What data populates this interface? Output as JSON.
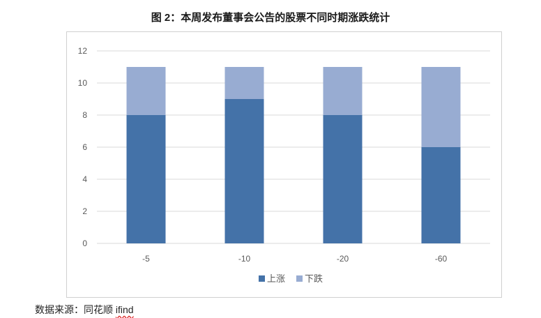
{
  "title": "图 2：本周发布董事会公告的股票不同时期涨跌统计",
  "source_prefix": "数据来源：同花顺 ",
  "source_brand": "ifind",
  "chart_data": {
    "type": "bar",
    "stacked": true,
    "categories": [
      "-5",
      "-10",
      "-20",
      "-60"
    ],
    "series": [
      {
        "name": "上涨",
        "values": [
          8,
          9,
          8,
          6
        ],
        "color": "#4472a8"
      },
      {
        "name": "下跌",
        "values": [
          3,
          2,
          3,
          5
        ],
        "color": "#98acd2"
      }
    ],
    "ylim": [
      0,
      12
    ],
    "yticks": [
      0,
      2,
      4,
      6,
      8,
      10,
      12
    ],
    "grid": true,
    "legend_position": "bottom"
  }
}
